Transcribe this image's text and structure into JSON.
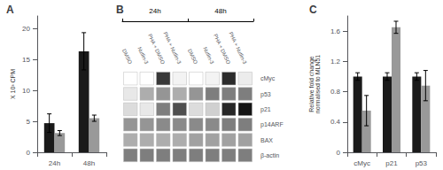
{
  "chart_data": [
    {
      "type": "bar",
      "title": "A",
      "ylabel": "X 10³ CPM",
      "categories": [
        "24h",
        "48h"
      ],
      "series": [
        {
          "color": "#1a1a1a",
          "values": [
            4.7,
            16.3
          ],
          "errors": [
            1.5,
            3.0
          ]
        },
        {
          "color": "#999999",
          "values": [
            3.1,
            5.5
          ],
          "errors": [
            0.4,
            0.5
          ]
        }
      ],
      "ylim": [
        0,
        22
      ],
      "yticks": [
        0,
        5,
        10,
        15,
        20
      ],
      "grid": false
    },
    {
      "type": "heatmap",
      "title": "B",
      "annotations": [
        "24h",
        "48h"
      ],
      "categories": [
        "DMSO",
        "Nutlin-3",
        "PHA + DMSO",
        "PHA + Nutlin-3",
        "DMSO",
        "Nutlin-3",
        "PHA + DMSO",
        "PHA + Nutlin-3"
      ],
      "rows": [
        "cMyc",
        "p53",
        "p21",
        "p14ARF",
        "BAX",
        "β-actin"
      ],
      "values": [
        [
          0.0,
          0.0,
          0.85,
          0.05,
          0.0,
          0.05,
          0.9,
          0.08
        ],
        [
          0.1,
          0.35,
          0.45,
          0.35,
          0.45,
          0.55,
          0.55,
          0.55
        ],
        [
          0.15,
          0.1,
          0.55,
          0.75,
          0.15,
          0.2,
          0.92,
          1.0
        ],
        [
          0.45,
          0.45,
          0.5,
          0.5,
          0.5,
          0.5,
          0.55,
          0.55
        ],
        [
          0.35,
          0.35,
          0.35,
          0.35,
          0.4,
          0.4,
          0.4,
          0.4
        ],
        [
          0.55,
          0.55,
          0.55,
          0.55,
          0.55,
          0.55,
          0.55,
          0.55
        ]
      ]
    },
    {
      "type": "bar",
      "title": "C",
      "ylabel": "Relative fold change\nnormalised to MLN51",
      "categories": [
        "cMyc",
        "p21",
        "p53"
      ],
      "series": [
        {
          "color": "#1a1a1a",
          "values": [
            1.0,
            1.0,
            1.0
          ],
          "errors": [
            0.05,
            0.05,
            0.05
          ]
        },
        {
          "color": "#999999",
          "values": [
            0.55,
            1.65,
            0.88
          ],
          "errors": [
            0.2,
            0.08,
            0.2
          ]
        }
      ],
      "ylim": [
        0,
        1.8
      ],
      "yticks": [
        0,
        0.4,
        0.8,
        1.2,
        1.6
      ],
      "grid": false
    }
  ]
}
